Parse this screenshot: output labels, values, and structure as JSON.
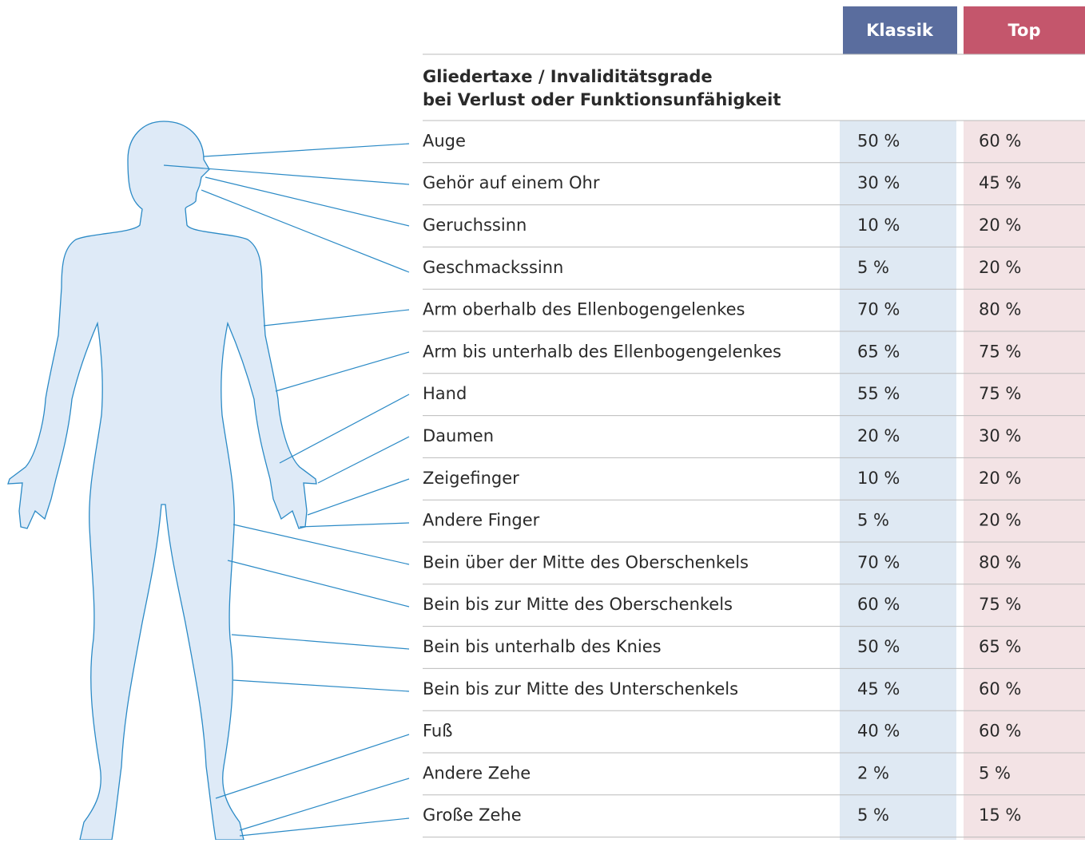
{
  "columns": [
    "Klassik",
    "Top"
  ],
  "heading": [
    "Gliedertaxe / Invaliditätsgrade",
    "bei Verlust oder Funktionsunfähigkeit"
  ],
  "rows": [
    [
      "Auge",
      "50 %",
      "60 %"
    ],
    [
      "Gehör auf einem Ohr",
      "30 %",
      "45 %"
    ],
    [
      "Geruchssinn",
      "10 %",
      "20 %"
    ],
    [
      "Geschmackssinn",
      "5 %",
      "20 %"
    ],
    [
      "Arm oberhalb des Ellenbogengelenkes",
      "70 %",
      "80 %"
    ],
    [
      "Arm bis unterhalb des Ellenbogengelenkes",
      "65 %",
      "75 %"
    ],
    [
      "Hand",
      "55 %",
      "75 %"
    ],
    [
      "Daumen",
      "20 %",
      "30 %"
    ],
    [
      "Zeigefinger",
      "10 %",
      "20 %"
    ],
    [
      "Andere Finger",
      "5 %",
      "20 %"
    ],
    [
      "Bein über der Mitte des Oberschenkels",
      "70 %",
      "80 %"
    ],
    [
      "Bein bis zur Mitte des Oberschenkels",
      "60 %",
      "75 %"
    ],
    [
      "Bein bis unterhalb des Knies",
      "50 %",
      "65 %"
    ],
    [
      "Bein bis zur Mitte des Unterschenkels",
      "45 %",
      "60 %"
    ],
    [
      "Fuß",
      "40 %",
      "60 %"
    ],
    [
      "Andere Zehe",
      "2 %",
      "5 %"
    ],
    [
      "Große Zehe",
      "5 %",
      "15 %"
    ]
  ]
}
